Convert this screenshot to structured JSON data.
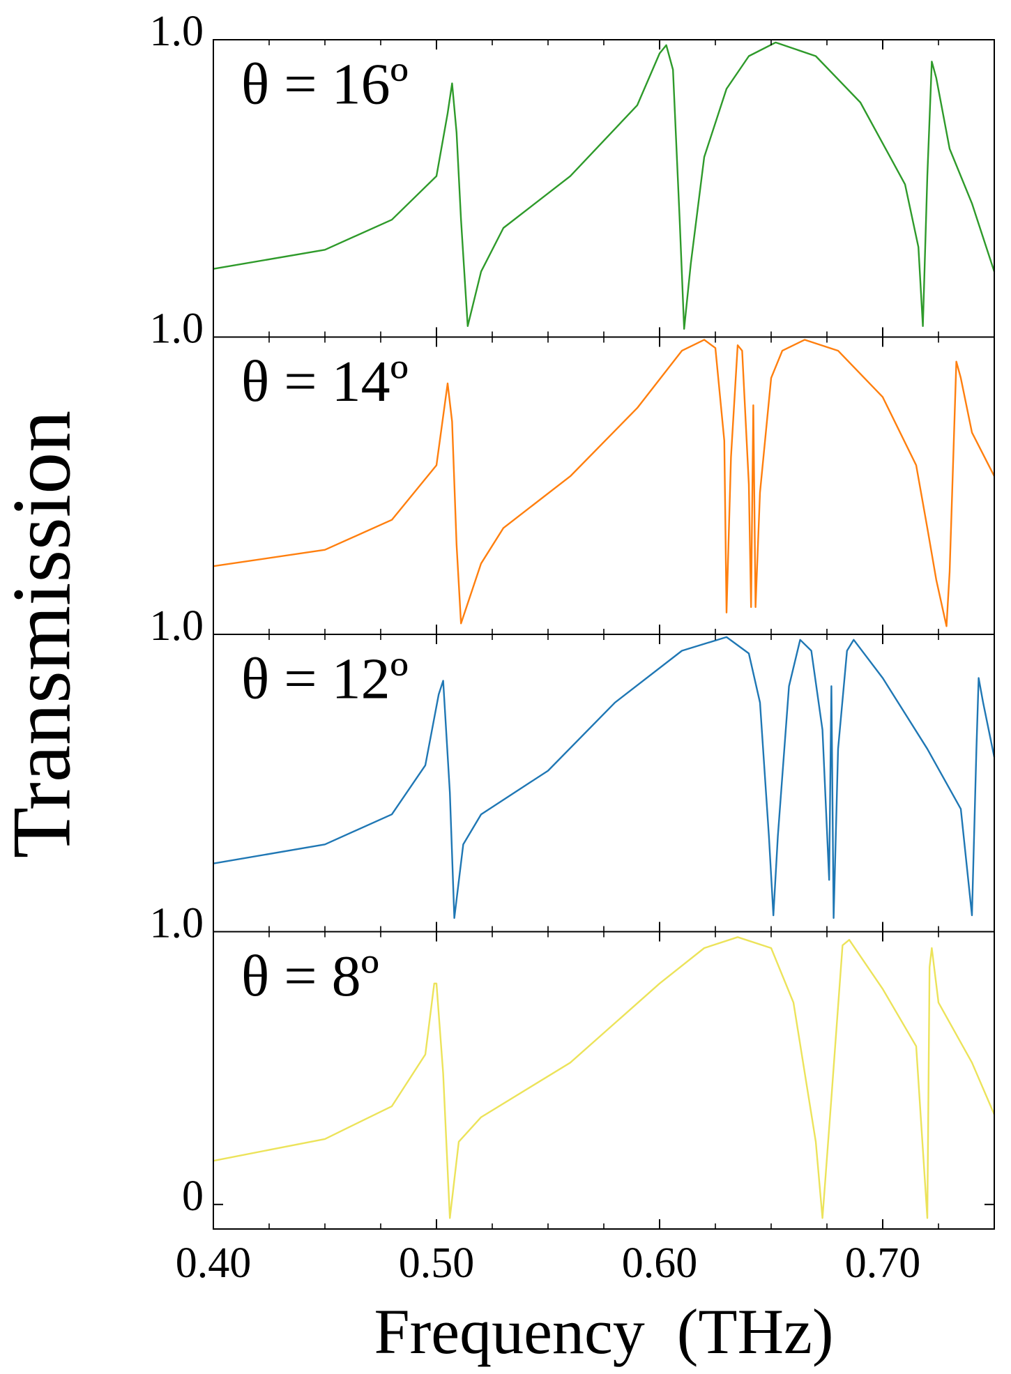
{
  "chart_data": [
    {
      "type": "line",
      "annotation": "θ = 16º",
      "ylabel": "Transmission",
      "color": "#2e9a2a",
      "ylim": [
        -0.09,
        1.0
      ],
      "yticks": [
        {
          "value": 1,
          "label": "1.0"
        }
      ],
      "x": [
        0.4,
        0.45,
        0.48,
        0.5,
        0.505,
        0.507,
        0.509,
        0.511,
        0.514,
        0.52,
        0.53,
        0.56,
        0.59,
        0.6,
        0.603,
        0.606,
        0.609,
        0.611,
        0.614,
        0.62,
        0.63,
        0.64,
        0.652,
        0.67,
        0.69,
        0.71,
        0.716,
        0.718,
        0.72,
        0.722,
        0.724,
        0.73,
        0.74,
        0.75
      ],
      "values": [
        0.16,
        0.23,
        0.34,
        0.5,
        0.73,
        0.84,
        0.66,
        0.34,
        -0.05,
        0.15,
        0.31,
        0.5,
        0.76,
        0.95,
        0.98,
        0.89,
        0.34,
        -0.06,
        0.18,
        0.57,
        0.82,
        0.94,
        0.99,
        0.94,
        0.77,
        0.47,
        0.24,
        -0.05,
        0.5,
        0.92,
        0.86,
        0.6,
        0.4,
        0.15
      ]
    },
    {
      "type": "line",
      "annotation": "θ = 14º",
      "color": "#ff7f0e",
      "ylim": [
        -0.09,
        1.0
      ],
      "yticks": [
        {
          "value": 1,
          "label": "1.0"
        }
      ],
      "x": [
        0.4,
        0.45,
        0.48,
        0.5,
        0.505,
        0.507,
        0.509,
        0.511,
        0.52,
        0.53,
        0.56,
        0.59,
        0.61,
        0.62,
        0.625,
        0.629,
        0.63,
        0.632,
        0.635,
        0.637,
        0.64,
        0.641,
        0.642,
        0.643,
        0.645,
        0.65,
        0.655,
        0.665,
        0.68,
        0.7,
        0.715,
        0.72,
        0.724,
        0.7286,
        0.73,
        0.733,
        0.735,
        0.74,
        0.75
      ],
      "values": [
        0.16,
        0.22,
        0.33,
        0.53,
        0.83,
        0.69,
        0.24,
        -0.05,
        0.17,
        0.3,
        0.49,
        0.74,
        0.95,
        0.99,
        0.96,
        0.62,
        -0.01,
        0.56,
        0.97,
        0.95,
        0.46,
        0.01,
        0.75,
        0.01,
        0.43,
        0.85,
        0.95,
        0.99,
        0.95,
        0.78,
        0.53,
        0.3,
        0.11,
        -0.06,
        0.14,
        0.91,
        0.85,
        0.65,
        0.49
      ]
    },
    {
      "type": "line",
      "annotation": "θ = 12º",
      "color": "#1f77b4",
      "ylim": [
        -0.09,
        1.0
      ],
      "yticks": [
        {
          "value": 1,
          "label": "1.0"
        }
      ],
      "x": [
        0.4,
        0.45,
        0.48,
        0.495,
        0.501,
        0.503,
        0.506,
        0.508,
        0.512,
        0.52,
        0.55,
        0.58,
        0.61,
        0.63,
        0.64,
        0.645,
        0.649,
        0.651,
        0.653,
        0.658,
        0.663,
        0.668,
        0.673,
        0.676,
        0.677,
        0.678,
        0.68,
        0.684,
        0.687,
        0.7,
        0.72,
        0.735,
        0.74,
        0.742,
        0.743,
        0.745,
        0.75
      ],
      "values": [
        0.16,
        0.23,
        0.34,
        0.52,
        0.78,
        0.83,
        0.42,
        -0.04,
        0.23,
        0.34,
        0.5,
        0.75,
        0.94,
        0.99,
        0.93,
        0.75,
        0.26,
        -0.03,
        0.26,
        0.81,
        0.98,
        0.94,
        0.65,
        0.1,
        0.81,
        -0.04,
        0.58,
        0.94,
        0.98,
        0.84,
        0.58,
        0.36,
        -0.03,
        0.58,
        0.84,
        0.75,
        0.55
      ]
    },
    {
      "type": "line",
      "annotation": "θ = 8º",
      "xlabel": "Frequency  (THz)",
      "color": "#ece35a",
      "ylim": [
        -0.09,
        1.0
      ],
      "yticks": [
        0,
        {
          "value": 1,
          "label": "1.0"
        }
      ],
      "xlim": [
        0.4,
        0.75
      ],
      "xticks": [
        {
          "value": 0.4,
          "label": "0.40"
        },
        {
          "value": 0.5,
          "label": "0.50"
        },
        {
          "value": 0.6,
          "label": "0.60"
        },
        {
          "value": 0.7,
          "label": "0.70"
        }
      ],
      "xminor_ticks": [
        0.425,
        0.45,
        0.475,
        0.525,
        0.55,
        0.575,
        0.625,
        0.65,
        0.675,
        0.725
      ],
      "x": [
        0.4,
        0.45,
        0.48,
        0.495,
        0.499,
        0.5,
        0.503,
        0.506,
        0.51,
        0.52,
        0.56,
        0.6,
        0.62,
        0.635,
        0.65,
        0.66,
        0.67,
        0.673,
        0.677,
        0.682,
        0.685,
        0.7,
        0.715,
        0.72,
        0.721,
        0.722,
        0.725,
        0.74,
        0.75
      ],
      "values": [
        0.16,
        0.24,
        0.36,
        0.55,
        0.81,
        0.81,
        0.48,
        -0.05,
        0.23,
        0.32,
        0.52,
        0.81,
        0.94,
        0.98,
        0.94,
        0.74,
        0.23,
        -0.05,
        0.39,
        0.95,
        0.97,
        0.79,
        0.58,
        -0.05,
        0.87,
        0.94,
        0.74,
        0.52,
        0.33
      ]
    }
  ]
}
